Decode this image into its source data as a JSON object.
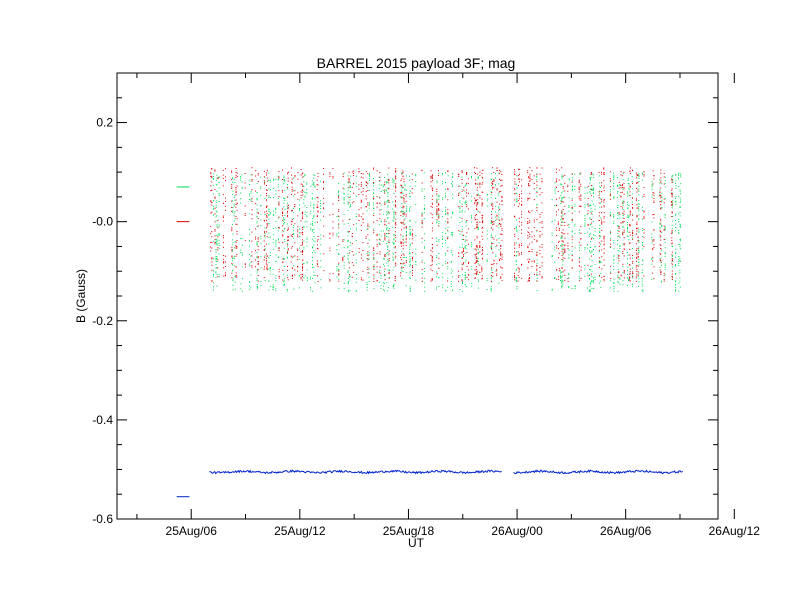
{
  "chart_data": {
    "type": "scatter",
    "title": "BARREL 2015 payload 3F; mag",
    "xlabel": "UT",
    "ylabel": "B (Gauss)",
    "x_unit": "hours from 25Aug/00 UT",
    "xlim": [
      1.9,
      35.1
    ],
    "ylim": [
      -0.6,
      0.3
    ],
    "x_ticks": [
      {
        "value": 6,
        "label": "25Aug/06"
      },
      {
        "value": 12,
        "label": "25Aug/12"
      },
      {
        "value": 18,
        "label": "25Aug/18"
      },
      {
        "value": 24,
        "label": "26Aug/00"
      },
      {
        "value": 30,
        "label": "26Aug/06"
      },
      {
        "value": 36,
        "label": "26Aug/12"
      }
    ],
    "y_ticks": [
      {
        "value": 0.2,
        "label": "0.2"
      },
      {
        "value": 0.0,
        "label": "-0.0"
      },
      {
        "value": -0.2,
        "label": "-0.2"
      },
      {
        "value": -0.4,
        "label": "-0.4"
      },
      {
        "value": -0.6,
        "label": "-0.6"
      }
    ],
    "series": [
      {
        "color": "#00dd55",
        "style": "dots",
        "segments": [
          [
            7.0,
            23.2
          ],
          [
            23.8,
            33.2
          ]
        ],
        "range": [
          -0.14,
          0.1
        ],
        "early": [
          [
            5.2,
            0.07
          ],
          [
            5.9,
            0.07
          ]
        ]
      },
      {
        "color": "#dd0000",
        "style": "dots",
        "segments": [
          [
            7.0,
            23.2
          ],
          [
            23.8,
            33.2
          ]
        ],
        "range": [
          -0.12,
          0.11
        ],
        "early": [
          [
            5.2,
            0.0
          ],
          [
            5.9,
            0.0
          ]
        ]
      },
      {
        "color": "#0022cc",
        "style": "line",
        "segments": [
          [
            7.0,
            23.2
          ],
          [
            23.8,
            33.2
          ]
        ],
        "level": -0.505,
        "early": [
          [
            5.2,
            -0.555
          ],
          [
            5.9,
            -0.555
          ]
        ]
      }
    ]
  }
}
